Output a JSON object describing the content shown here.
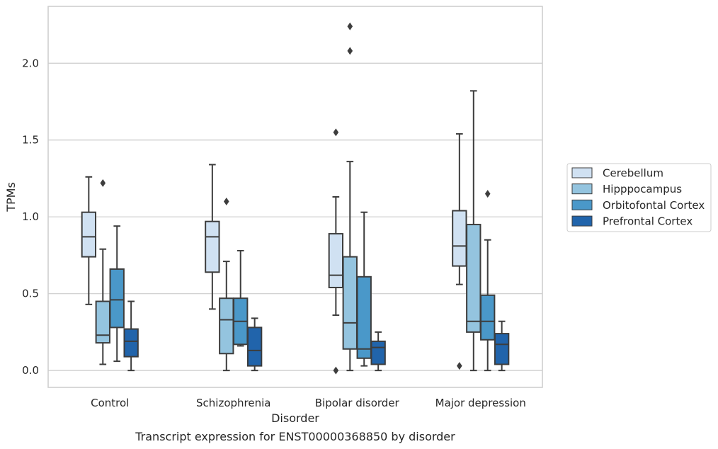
{
  "caption": "Transcript expression for ENST00000368850 by disorder",
  "chart_data": {
    "type": "boxplot",
    "xlabel": "Disorder",
    "ylabel": "TPMs",
    "ylim": [
      -0.11,
      2.37
    ],
    "yticks": [
      0.0,
      0.5,
      1.0,
      1.5,
      2.0
    ],
    "ytick_labels": [
      "0.0",
      "0.5",
      "1.0",
      "1.5",
      "2.0"
    ],
    "grid": "horizontal",
    "legend_placement": "right",
    "categories": [
      "Control",
      "Schizophrenia",
      "Bipolar disorder",
      "Major depression"
    ],
    "series": [
      {
        "name": "Cerebellum",
        "color": "#d0e1f2",
        "boxes": [
          {
            "whislo": 0.43,
            "q1": 0.74,
            "med": 0.87,
            "q3": 1.03,
            "whishi": 1.26,
            "fliers": []
          },
          {
            "whislo": 0.4,
            "q1": 0.64,
            "med": 0.87,
            "q3": 0.97,
            "whishi": 1.34,
            "fliers": []
          },
          {
            "whislo": 0.36,
            "q1": 0.54,
            "med": 0.62,
            "q3": 0.89,
            "whishi": 1.13,
            "fliers": [
              0.0,
              1.55
            ]
          },
          {
            "whislo": 0.56,
            "q1": 0.68,
            "med": 0.81,
            "q3": 1.04,
            "whishi": 1.54,
            "fliers": [
              0.03
            ]
          }
        ]
      },
      {
        "name": "Hipppocampus",
        "color": "#94c4df",
        "boxes": [
          {
            "whislo": 0.04,
            "q1": 0.18,
            "med": 0.23,
            "q3": 0.45,
            "whishi": 0.79,
            "fliers": [
              1.22
            ]
          },
          {
            "whislo": 0.0,
            "q1": 0.11,
            "med": 0.33,
            "q3": 0.47,
            "whishi": 0.71,
            "fliers": [
              1.1
            ]
          },
          {
            "whislo": 0.0,
            "q1": 0.14,
            "med": 0.31,
            "q3": 0.74,
            "whishi": 1.36,
            "fliers": [
              2.08,
              2.24
            ]
          },
          {
            "whislo": 0.0,
            "q1": 0.25,
            "med": 0.32,
            "q3": 0.95,
            "whishi": 1.82,
            "fliers": []
          }
        ]
      },
      {
        "name": "Orbitofontal Cortex",
        "color": "#4a98c9",
        "boxes": [
          {
            "whislo": 0.06,
            "q1": 0.28,
            "med": 0.46,
            "q3": 0.66,
            "whishi": 0.94,
            "fliers": []
          },
          {
            "whislo": 0.16,
            "q1": 0.17,
            "med": 0.32,
            "q3": 0.47,
            "whishi": 0.78,
            "fliers": []
          },
          {
            "whislo": 0.03,
            "q1": 0.08,
            "med": 0.14,
            "q3": 0.61,
            "whishi": 1.03,
            "fliers": []
          },
          {
            "whislo": 0.0,
            "q1": 0.2,
            "med": 0.32,
            "q3": 0.49,
            "whishi": 0.85,
            "fliers": [
              1.15
            ]
          }
        ]
      },
      {
        "name": "Prefrontal Cortex",
        "color": "#2164ab",
        "boxes": [
          {
            "whislo": 0.0,
            "q1": 0.09,
            "med": 0.19,
            "q3": 0.27,
            "whishi": 0.45,
            "fliers": []
          },
          {
            "whislo": 0.0,
            "q1": 0.03,
            "med": 0.13,
            "q3": 0.28,
            "whishi": 0.34,
            "fliers": []
          },
          {
            "whislo": 0.0,
            "q1": 0.04,
            "med": 0.15,
            "q3": 0.19,
            "whishi": 0.25,
            "fliers": []
          },
          {
            "whislo": 0.0,
            "q1": 0.04,
            "med": 0.17,
            "q3": 0.24,
            "whishi": 0.32,
            "fliers": []
          }
        ]
      }
    ]
  }
}
